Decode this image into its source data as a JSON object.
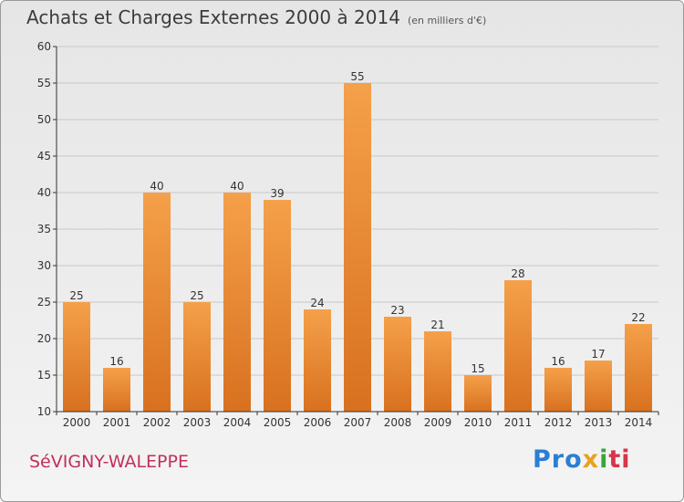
{
  "header": {
    "title": "Achats et Charges Externes 2000 à 2014",
    "subtitle": "(en milliers d'€)"
  },
  "footer": {
    "commune": "SéVIGNY-WALEPPE",
    "brand": [
      "Pro",
      "x",
      "i",
      "ti"
    ]
  },
  "colors": {
    "bar_light": "#f5a04a",
    "bar_dark": "#d8711f",
    "grid": "#c8c8c8",
    "axis": "#333333"
  },
  "chart_data": {
    "type": "bar",
    "categories": [
      "2000",
      "2001",
      "2002",
      "2003",
      "2004",
      "2005",
      "2006",
      "2007",
      "2008",
      "2009",
      "2010",
      "2011",
      "2012",
      "2013",
      "2014"
    ],
    "values": [
      25,
      16,
      40,
      25,
      40,
      39,
      24,
      55,
      23,
      21,
      15,
      28,
      16,
      17,
      22
    ],
    "ylim": [
      10,
      60
    ],
    "yticks": [
      10,
      15,
      20,
      25,
      30,
      35,
      40,
      45,
      50,
      55,
      60
    ],
    "grid": true,
    "data_labels": true
  }
}
